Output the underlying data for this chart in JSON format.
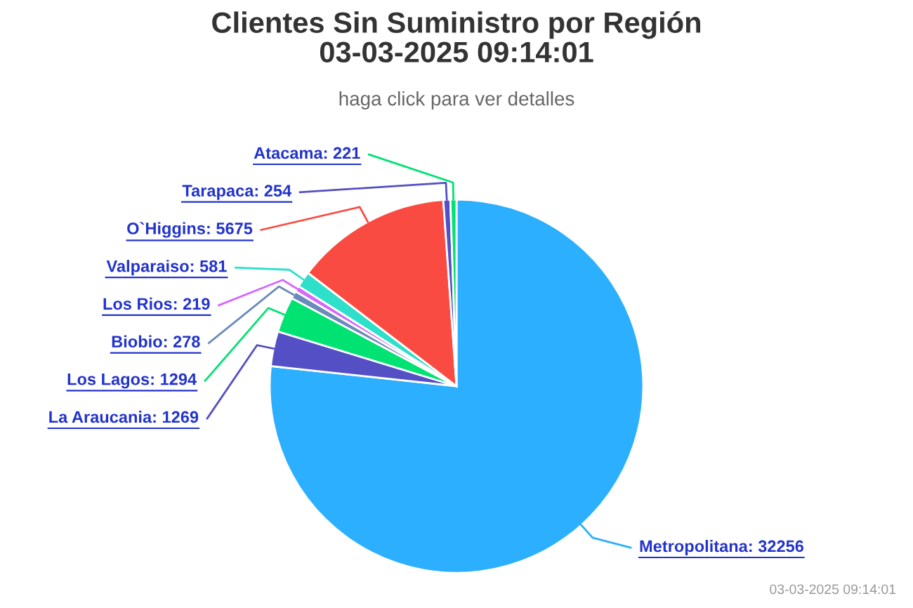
{
  "chart_data": {
    "type": "pie",
    "title": "Clientes Sin Suministro por Región\n03-03-2025 09:14:01",
    "subtitle": "haga click para ver detalles",
    "categories": [
      "Metropolitana: 32256",
      "La Araucania: 1269",
      "Los Lagos: 1294",
      "Biobio: 278",
      "Los Rios: 219",
      "Valparaiso: 581",
      "O`Higgins: 5675",
      "Tarapaca: 254",
      "Atacama: 221"
    ],
    "values": [
      32256,
      1269,
      1294,
      278,
      219,
      581,
      5675,
      254,
      221
    ],
    "colors": [
      "#2caffe",
      "#544fc5",
      "#00e272",
      "#6b8abc",
      "#d568fb",
      "#2ee0ca",
      "#fa4b42",
      "#544fc5",
      "#00e272"
    ],
    "annotations": [
      "03-03-2025 09:14:01"
    ]
  }
}
